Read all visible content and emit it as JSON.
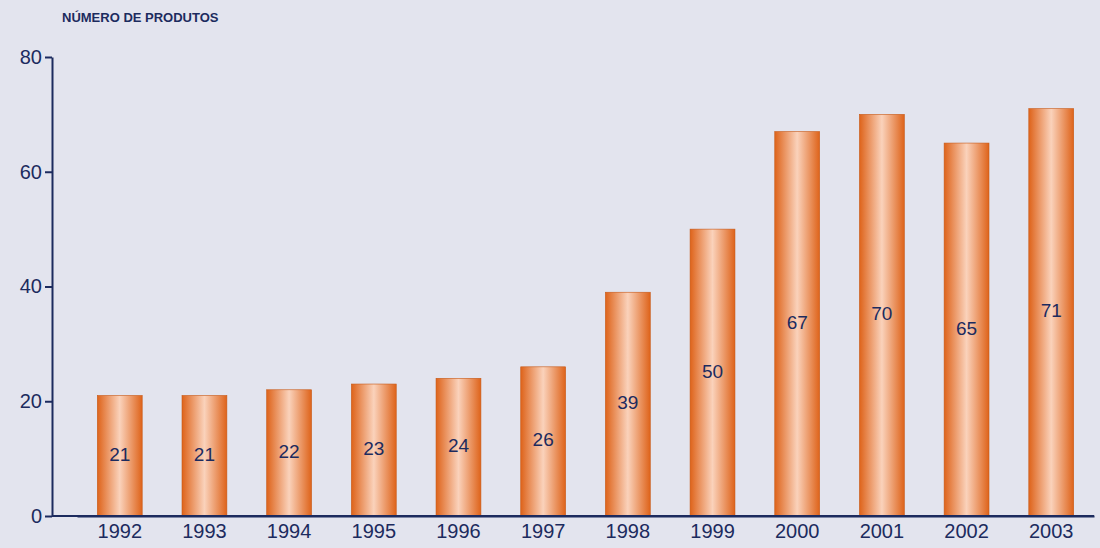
{
  "chart_data": {
    "type": "bar",
    "y_label": "NÚMERO DE PRODUTOS",
    "categories": [
      "1992",
      "1993",
      "1994",
      "1995",
      "1996",
      "1997",
      "1998",
      "1999",
      "2000",
      "2001",
      "2002",
      "2003"
    ],
    "values": [
      21,
      21,
      22,
      23,
      24,
      26,
      39,
      50,
      67,
      70,
      65,
      71
    ],
    "color": "#ee6a1c",
    "ylim": [
      0,
      80
    ],
    "yticks": [
      0,
      20,
      40,
      60,
      80
    ],
    "grid": false,
    "data_labels": true
  }
}
